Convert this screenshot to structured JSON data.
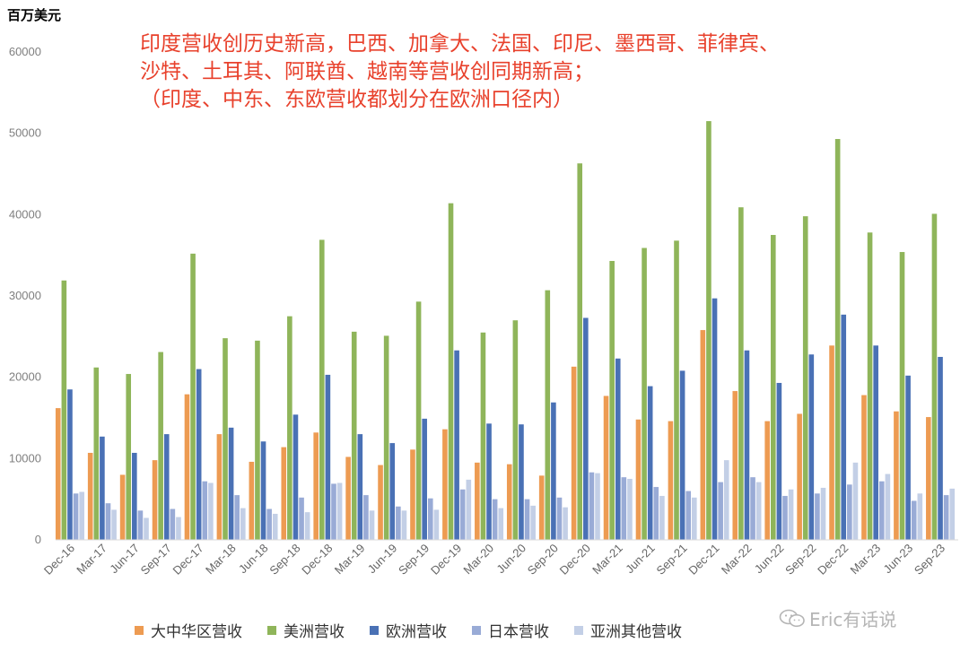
{
  "unit_label": "百万美元",
  "annotation_lines": [
    "印度营收创历史新高，巴西、加拿大、法国、印尼、墨西哥、菲律宾、",
    "沙特、土耳其、阿联酋、越南等营收创同期新高；",
    "（印度、中东、东欧营收都划分在欧洲口径内）"
  ],
  "watermark": "Eric有话说",
  "colors": {
    "greater_china": "#ed9b52",
    "americas": "#8fb55a",
    "europe": "#4a71b5",
    "japan": "#99abd6",
    "rest_of_asia": "#c3cfe6",
    "annotation": "#e8412c"
  },
  "chart_data": {
    "type": "bar",
    "title": "",
    "xlabel": "",
    "ylabel": "",
    "ylim": [
      0,
      60000
    ],
    "yticks": [
      0,
      10000,
      20000,
      30000,
      40000,
      50000,
      60000
    ],
    "grid": false,
    "legend_position": "bottom",
    "categories": [
      "Dec-16",
      "Mar-17",
      "Jun-17",
      "Sep-17",
      "Dec-17",
      "Mar-18",
      "Jun-18",
      "Sep-18",
      "Dec-18",
      "Mar-19",
      "Jun-19",
      "Sep-19",
      "Dec-19",
      "Mar-20",
      "Jun-20",
      "Sep-20",
      "Dec-20",
      "Mar-21",
      "Jun-21",
      "Sep-21",
      "Dec-21",
      "Mar-22",
      "Jun-22",
      "Sep-22",
      "Dec-22",
      "Mar-23",
      "Jun-23",
      "Sep-23"
    ],
    "series": [
      {
        "name": "大中华区营收",
        "color_key": "greater_china",
        "values": [
          16200,
          10700,
          8000,
          9800,
          17900,
          13000,
          9600,
          11400,
          13200,
          10200,
          9200,
          11100,
          13600,
          9500,
          9300,
          7900,
          21300,
          17700,
          14800,
          14600,
          25800,
          18300,
          14600,
          15500,
          23900,
          17800,
          15800,
          15100
        ]
      },
      {
        "name": "美洲营收",
        "color_key": "americas",
        "values": [
          31900,
          21200,
          20400,
          23100,
          35200,
          24800,
          24500,
          27500,
          36900,
          25600,
          25100,
          29300,
          41400,
          25500,
          27000,
          30700,
          46300,
          34300,
          35900,
          36800,
          51500,
          40900,
          37500,
          39800,
          49300,
          37800,
          35400,
          40100
        ]
      },
      {
        "name": "欧洲营收",
        "color_key": "europe",
        "values": [
          18500,
          12700,
          10700,
          13000,
          21000,
          13800,
          12100,
          15400,
          20300,
          13000,
          11900,
          14900,
          23300,
          14300,
          14200,
          16900,
          27300,
          22300,
          18900,
          20800,
          29700,
          23300,
          19300,
          22800,
          27700,
          23900,
          20200,
          22500
        ]
      },
      {
        "name": "日本营收",
        "color_key": "japan",
        "values": [
          5700,
          4500,
          3600,
          3800,
          7200,
          5500,
          3800,
          5200,
          6900,
          5500,
          4100,
          5100,
          6200,
          5000,
          5000,
          5200,
          8300,
          7700,
          6500,
          6000,
          7100,
          7700,
          5400,
          5700,
          6800,
          7200,
          4800,
          5500
        ]
      },
      {
        "name": "亚洲其他营收",
        "color_key": "rest_of_asia",
        "values": [
          5900,
          3700,
          2700,
          2800,
          7000,
          3900,
          3200,
          3400,
          7000,
          3600,
          3600,
          3700,
          7400,
          3900,
          4200,
          4000,
          8200,
          7500,
          5400,
          5200,
          9800,
          7100,
          6200,
          6400,
          9500,
          8100,
          5700,
          6300
        ]
      }
    ]
  }
}
